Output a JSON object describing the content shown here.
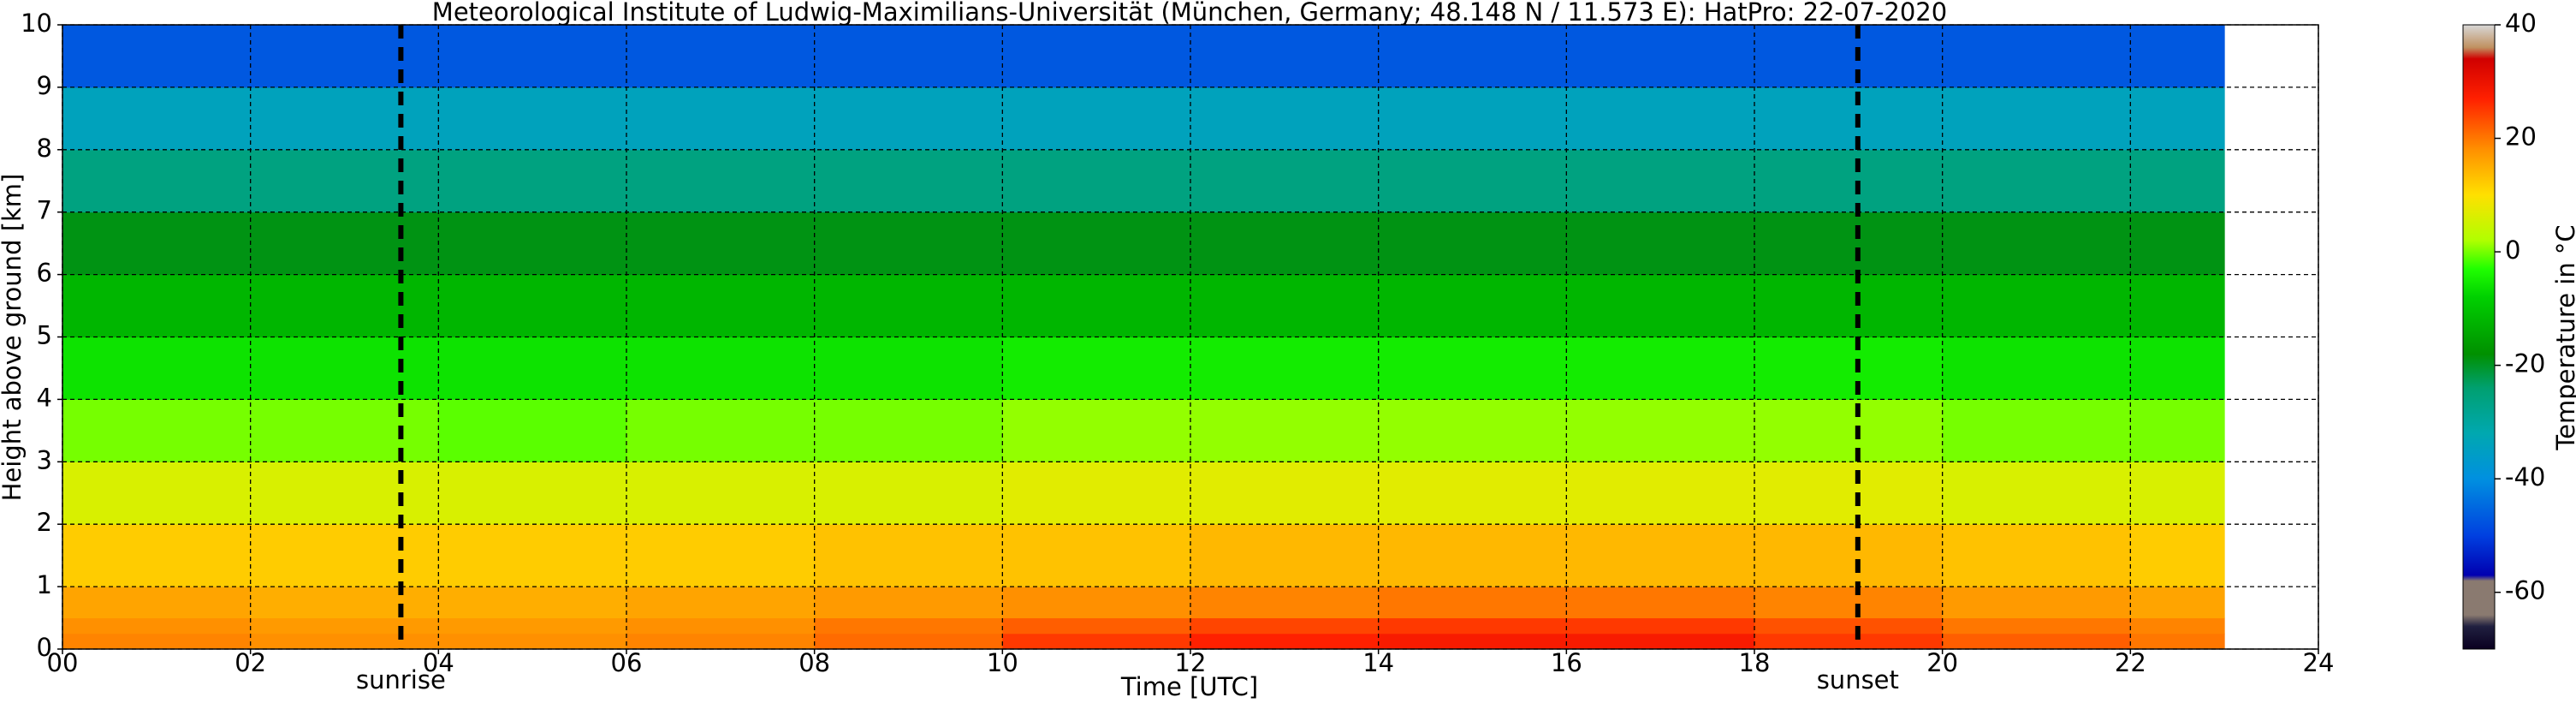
{
  "chart_data": {
    "type": "heatmap",
    "title": "Meteorological Institute of Ludwig-Maximilians-Universität (München, Germany; 48.148 N / 11.573 E):    HatPro: 22-07-2020",
    "xlabel": "Time [UTC]",
    "ylabel": "Height above ground [km]",
    "colorbar_label": "Temperature in °C",
    "xlim": [
      0,
      24
    ],
    "ylim": [
      0,
      10
    ],
    "xticks": [
      {
        "value": 0,
        "label": "00"
      },
      {
        "value": 2,
        "label": "02"
      },
      {
        "value": 4,
        "label": "04"
      },
      {
        "value": 6,
        "label": "06"
      },
      {
        "value": 8,
        "label": "08"
      },
      10,
      12,
      14,
      16,
      18,
      20,
      22,
      24
    ],
    "yticks": [
      0,
      1,
      2,
      3,
      4,
      5,
      6,
      7,
      8,
      9,
      10
    ],
    "grid": true,
    "x_edges": [
      0,
      2,
      4,
      6,
      8,
      10,
      12,
      14,
      16,
      18,
      20,
      22,
      23
    ],
    "y_edges": [
      0,
      0.25,
      0.5,
      1,
      2,
      3,
      4,
      5,
      6,
      7,
      8,
      9,
      10
    ],
    "values": [
      [
        19,
        18,
        18,
        19,
        21,
        25,
        27,
        28,
        28,
        25,
        22,
        20
      ],
      [
        18,
        17,
        17,
        18,
        20,
        22,
        24,
        25,
        25,
        23,
        20,
        19
      ],
      [
        16,
        15,
        15,
        16,
        17,
        18,
        19,
        20,
        20,
        19,
        17,
        16
      ],
      [
        12,
        12,
        12,
        12,
        13,
        13,
        14,
        14,
        14,
        14,
        13,
        12
      ],
      [
        6,
        6,
        6,
        6,
        6,
        7,
        7,
        7,
        7,
        7,
        6,
        6
      ],
      [
        0,
        0,
        -1,
        0,
        0,
        1,
        1,
        1,
        1,
        1,
        0,
        0
      ],
      [
        -6,
        -6,
        -6,
        -6,
        -6,
        -5,
        -5,
        -5,
        -5,
        -5,
        -6,
        -6
      ],
      [
        -12,
        -12,
        -12,
        -12,
        -12,
        -12,
        -12,
        -12,
        -12,
        -12,
        -12,
        -12
      ],
      [
        -19,
        -19,
        -19,
        -19,
        -19,
        -19,
        -19,
        -19,
        -19,
        -19,
        -19,
        -19
      ],
      [
        -26,
        -26,
        -26,
        -26,
        -26,
        -26,
        -26,
        -26,
        -26,
        -26,
        -26,
        -26
      ],
      [
        -34,
        -34,
        -34,
        -34,
        -34,
        -34,
        -34,
        -34,
        -34,
        -34,
        -34,
        -34
      ],
      [
        -47,
        -47,
        -47,
        -47,
        -47,
        -47,
        -47,
        -47,
        -47,
        -47,
        -47,
        -47
      ]
    ],
    "clim": [
      -70,
      40
    ],
    "cticks": [
      -60,
      -40,
      -20,
      0,
      20,
      40
    ],
    "colorscale": [
      [
        -70,
        "#0a0020"
      ],
      [
        -66,
        "#202040"
      ],
      [
        -64,
        "#8a7a70"
      ],
      [
        -58,
        "#8a7a70"
      ],
      [
        -57,
        "#0000b0"
      ],
      [
        -50,
        "#0040e0"
      ],
      [
        -40,
        "#0090e0"
      ],
      [
        -32,
        "#00a8b0"
      ],
      [
        -24,
        "#00a070"
      ],
      [
        -18,
        "#009000"
      ],
      [
        -8,
        "#00d000"
      ],
      [
        -3,
        "#20ff00"
      ],
      [
        2,
        "#b0ff00"
      ],
      [
        10,
        "#ffe000"
      ],
      [
        18,
        "#ff9000"
      ],
      [
        27,
        "#ff2000"
      ],
      [
        34,
        "#d00000"
      ],
      [
        36,
        "#c09060"
      ],
      [
        40,
        "#d8d8d8"
      ]
    ],
    "events": [
      {
        "label": "sunrise",
        "time": 3.6
      },
      {
        "label": "sunset",
        "time": 19.1
      }
    ]
  }
}
